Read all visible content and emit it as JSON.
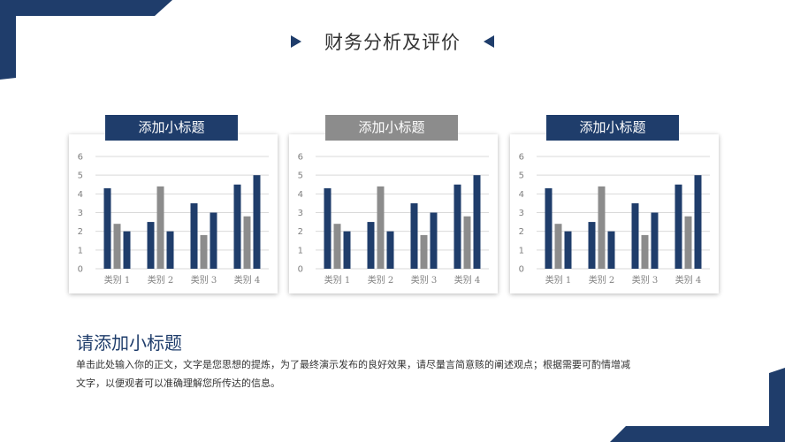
{
  "slide": {
    "title": "财务分析及评价",
    "heading": "请添加小标题",
    "body_lines": [
      "单击此处输入你的正文，文字是您思想的提炼，为了最终演示发布的良好效果，请尽量言简意赅的阐述观点；根据需要可酌情增减",
      "文字，以便观者可以准确理解您所传达的信息。"
    ]
  },
  "colors": {
    "navy": "#1f3d6b",
    "gray": "#8c8c8c",
    "grid": "#d9d9d9",
    "axis_text": "#7f7f7f"
  },
  "cards": [
    {
      "title": "添加小标题",
      "title_color": "#1f3d6b"
    },
    {
      "title": "添加小标题",
      "title_color": "#8c8c8c"
    },
    {
      "title": "添加小标题",
      "title_color": "#1f3d6b"
    }
  ],
  "chart_data": [
    {
      "type": "bar",
      "categories": [
        "类别 1",
        "类别 2",
        "类别 3",
        "类别 4"
      ],
      "series": [
        {
          "values": [
            4.3,
            2.5,
            3.5,
            4.5
          ],
          "color": "#1f3d6b"
        },
        {
          "values": [
            2.4,
            4.4,
            1.8,
            2.8
          ],
          "color": "#8c8c8c"
        },
        {
          "values": [
            2.0,
            2.0,
            3.0,
            5.0
          ],
          "color": "#1f3d6b"
        }
      ],
      "yticks": [
        "0",
        "1",
        "2",
        "3",
        "4",
        "5",
        "6"
      ],
      "ylim": [
        0,
        6
      ],
      "grid": true
    },
    {
      "type": "bar",
      "categories": [
        "类别 1",
        "类别 2",
        "类别 3",
        "类别 4"
      ],
      "series": [
        {
          "values": [
            4.3,
            2.5,
            3.5,
            4.5
          ],
          "color": "#1f3d6b"
        },
        {
          "values": [
            2.4,
            4.4,
            1.8,
            2.8
          ],
          "color": "#8c8c8c"
        },
        {
          "values": [
            2.0,
            2.0,
            3.0,
            5.0
          ],
          "color": "#1f3d6b"
        }
      ],
      "yticks": [
        "0",
        "1",
        "2",
        "3",
        "4",
        "5",
        "6"
      ],
      "ylim": [
        0,
        6
      ],
      "grid": true
    },
    {
      "type": "bar",
      "categories": [
        "类别 1",
        "类别 2",
        "类别 3",
        "类别 4"
      ],
      "series": [
        {
          "values": [
            4.3,
            2.5,
            3.5,
            4.5
          ],
          "color": "#1f3d6b"
        },
        {
          "values": [
            2.4,
            4.4,
            1.8,
            2.8
          ],
          "color": "#8c8c8c"
        },
        {
          "values": [
            2.0,
            2.0,
            3.0,
            5.0
          ],
          "color": "#1f3d6b"
        }
      ],
      "yticks": [
        "0",
        "1",
        "2",
        "3",
        "4",
        "5",
        "6"
      ],
      "ylim": [
        0,
        6
      ],
      "grid": true
    }
  ]
}
